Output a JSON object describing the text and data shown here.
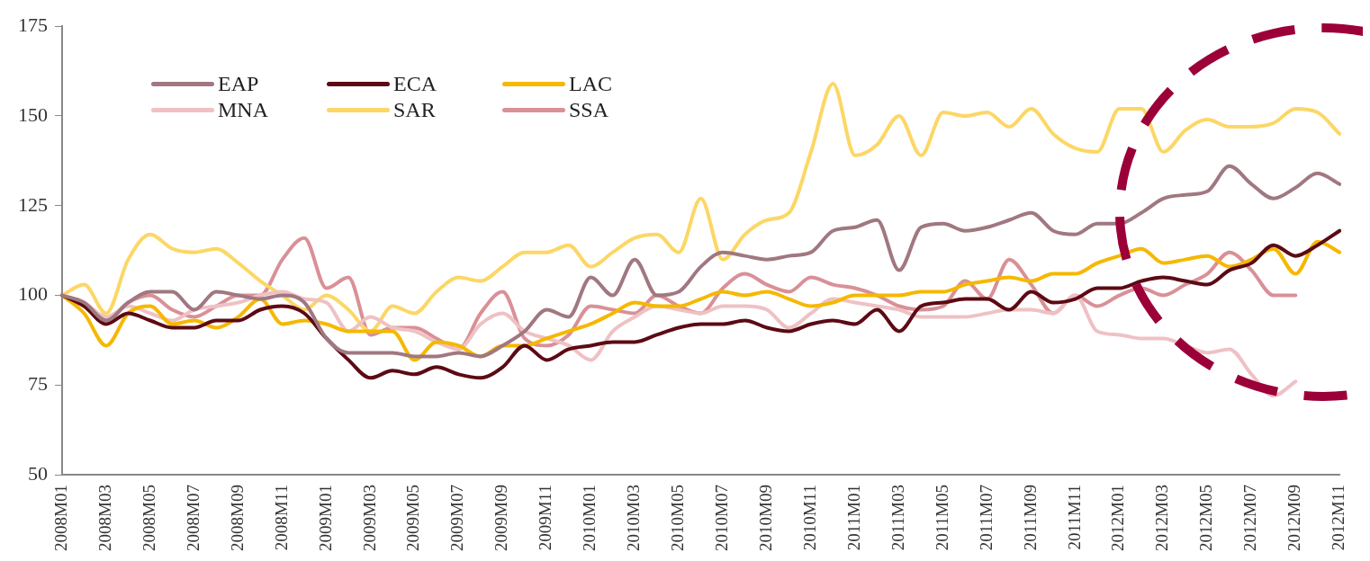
{
  "chart_data": {
    "type": "line",
    "categories": [
      "2008M01",
      null,
      "2008M03",
      null,
      "2008M05",
      null,
      "2008M07",
      null,
      "2008M09",
      null,
      "2008M11",
      null,
      "2009M01",
      null,
      "2009M03",
      null,
      "2009M05",
      null,
      "2009M07",
      null,
      "2009M09",
      null,
      "2009M11",
      null,
      "2010M01",
      null,
      "2010M03",
      null,
      "2010M05",
      null,
      "2010M07",
      null,
      "2010M09",
      null,
      "2010M11",
      null,
      "2011M01",
      null,
      "2011M03",
      null,
      "2011M05",
      null,
      "2011M07",
      null,
      "2011M09",
      null,
      "2011M11",
      null,
      "2012M01",
      null,
      "2012M03",
      null,
      "2012M05",
      null,
      "2012M07",
      null,
      "2012M09",
      null,
      "2012M11"
    ],
    "series": [
      {
        "name": "EAP",
        "color": "#a07880",
        "values": [
          100,
          98,
          93,
          98,
          101,
          101,
          96,
          101,
          100,
          99,
          100,
          98,
          88,
          84,
          84,
          84,
          83,
          83,
          84,
          83,
          86,
          90,
          96,
          94,
          105,
          100,
          110,
          100,
          101,
          108,
          112,
          111,
          110,
          111,
          112,
          118,
          119,
          121,
          107,
          119,
          120,
          118,
          119,
          121,
          123,
          118,
          117,
          120,
          120,
          123,
          127,
          128,
          129,
          136,
          131,
          127,
          130,
          134,
          131
        ]
      },
      {
        "name": "ECA",
        "color": "#5c0a14",
        "values": [
          100,
          97,
          92,
          95,
          93,
          91,
          91,
          93,
          93,
          96,
          97,
          95,
          88,
          82,
          77,
          79,
          78,
          80,
          78,
          77,
          80,
          86,
          82,
          85,
          86,
          87,
          87,
          89,
          91,
          92,
          92,
          93,
          91,
          90,
          92,
          93,
          92,
          96,
          90,
          97,
          98,
          99,
          99,
          96,
          101,
          98,
          99,
          102,
          102,
          104,
          105,
          104,
          103,
          107,
          109,
          114,
          111,
          114,
          118
        ]
      },
      {
        "name": "LAC",
        "color": "#f5b800",
        "values": [
          100,
          95,
          86,
          95,
          97,
          92,
          93,
          91,
          94,
          99,
          92,
          93,
          92,
          90,
          90,
          90,
          82,
          87,
          86,
          83,
          86,
          86,
          88,
          90,
          92,
          95,
          98,
          97,
          97,
          99,
          101,
          100,
          101,
          99,
          97,
          98,
          100,
          100,
          100,
          101,
          101,
          103,
          104,
          105,
          104,
          106,
          106,
          109,
          111,
          113,
          109,
          110,
          111,
          108,
          110,
          113,
          106,
          115,
          112
        ]
      },
      {
        "name": "MNA",
        "color": "#efc1c4",
        "values": [
          100,
          98,
          94,
          97,
          95,
          93,
          96,
          97,
          98,
          100,
          101,
          99,
          98,
          90,
          94,
          91,
          90,
          87,
          85,
          92,
          95,
          90,
          88,
          86,
          82,
          90,
          94,
          97,
          96,
          95,
          97,
          97,
          96,
          91,
          95,
          99,
          98,
          97,
          96,
          94,
          94,
          94,
          95,
          96,
          96,
          95,
          100,
          90,
          89,
          88,
          88,
          86,
          84,
          85,
          78,
          72,
          76,
          null,
          null
        ]
      },
      {
        "name": "SAR",
        "color": "#fcd765",
        "values": [
          100,
          103,
          95,
          110,
          117,
          113,
          112,
          113,
          109,
          104,
          100,
          96,
          100,
          96,
          90,
          97,
          95,
          101,
          105,
          104,
          108,
          112,
          112,
          114,
          108,
          112,
          116,
          117,
          112,
          127,
          110,
          117,
          121,
          123,
          140,
          159,
          139,
          142,
          150,
          139,
          151,
          150,
          151,
          147,
          152,
          145,
          141,
          140,
          152,
          152,
          140,
          146,
          149,
          147,
          147,
          148,
          152,
          151,
          145
        ]
      },
      {
        "name": "SSA",
        "color": "#d99096",
        "values": [
          100,
          97,
          93,
          98,
          100,
          96,
          94,
          97,
          100,
          100,
          110,
          116,
          102,
          105,
          89,
          91,
          91,
          88,
          85,
          95,
          101,
          88,
          86,
          89,
          97,
          96,
          95,
          100,
          97,
          95,
          102,
          106,
          103,
          101,
          105,
          103,
          102,
          100,
          97,
          96,
          97,
          104,
          99,
          110,
          103,
          95,
          100,
          97,
          100,
          102,
          100,
          103,
          106,
          112,
          107,
          100,
          100,
          null,
          null
        ]
      }
    ],
    "ylim": [
      50,
      175
    ],
    "yticks": [
      50,
      75,
      100,
      125,
      150,
      175
    ],
    "grid": false,
    "legend": "top left",
    "marker": "none",
    "line_style": "solid"
  }
}
